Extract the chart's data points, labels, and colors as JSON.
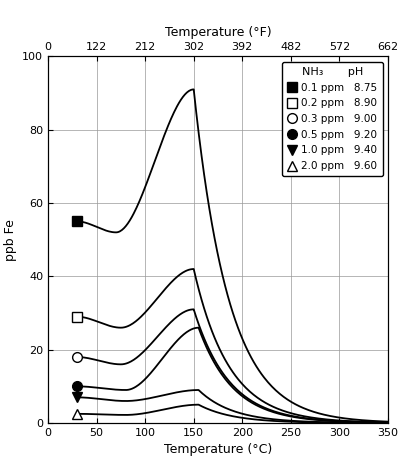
{
  "title_top": "Temperature (°F)",
  "xlabel": "Temperature (°C)",
  "ylabel": "ppb Fe",
  "xlim": [
    0,
    350
  ],
  "ylim": [
    0,
    100
  ],
  "xticks_bottom": [
    0,
    50,
    100,
    150,
    200,
    250,
    300,
    350
  ],
  "xticks_top": [
    0,
    122,
    212,
    302,
    392,
    482,
    572,
    662
  ],
  "yticks": [
    0,
    20,
    40,
    60,
    80,
    100
  ],
  "curves": [
    {
      "nh3": "0.1 ppm",
      "pH": "8.75",
      "start_temp": 30,
      "start_val": 55,
      "dip_val": 52,
      "dip_temp": 70,
      "peak_temp": 150,
      "peak_val": 91,
      "decay": 5.5,
      "marker": "s",
      "filled": true
    },
    {
      "nh3": "0.2 ppm",
      "pH": "8.90",
      "start_temp": 30,
      "start_val": 29,
      "dip_val": 26,
      "dip_temp": 75,
      "peak_temp": 150,
      "peak_val": 42,
      "decay": 5.5,
      "marker": "s",
      "filled": false
    },
    {
      "nh3": "0.3 ppm",
      "pH": "9.00",
      "start_temp": 30,
      "start_val": 18,
      "dip_val": 16,
      "dip_temp": 75,
      "peak_temp": 150,
      "peak_val": 31,
      "decay": 5.5,
      "marker": "o",
      "filled": false
    },
    {
      "nh3": "0.5 ppm",
      "pH": "9.20",
      "start_temp": 30,
      "start_val": 10,
      "dip_val": 9,
      "dip_temp": 80,
      "peak_temp": 155,
      "peak_val": 26,
      "decay": 5.5,
      "marker": "o",
      "filled": true
    },
    {
      "nh3": "1.0 ppm",
      "pH": "9.40",
      "start_temp": 30,
      "start_val": 7,
      "dip_val": 6,
      "dip_temp": 80,
      "peak_temp": 155,
      "peak_val": 9,
      "decay": 5.5,
      "marker": "v",
      "filled": true
    },
    {
      "nh3": "2.0 ppm",
      "pH": "9.60",
      "start_temp": 30,
      "start_val": 2.5,
      "dip_val": 2.2,
      "dip_temp": 80,
      "peak_temp": 155,
      "peak_val": 5,
      "decay": 5.5,
      "marker": "^",
      "filled": false
    }
  ],
  "background_color": "white",
  "grid_color": "#999999"
}
